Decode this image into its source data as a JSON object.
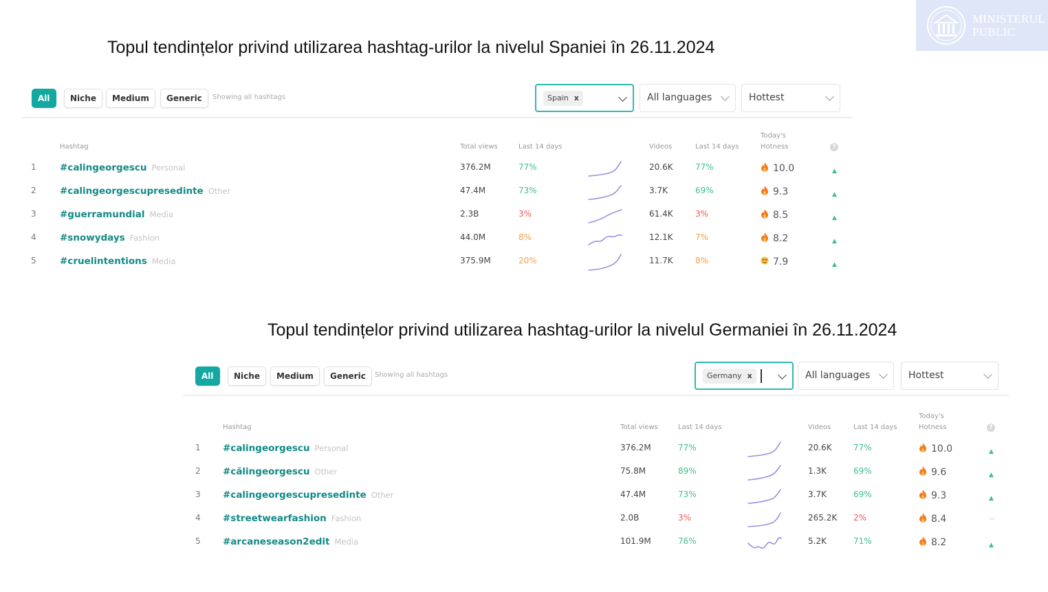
{
  "slide": {
    "title_spain": "Topul tendințelor privind utilizarea hashtag-urilor la nivelul Spaniei în 26.11.2024",
    "title_germany": "Topul tendințelor privind utilizarea hashtag-urilor la nivelul Germaniei în 26.11.2024"
  },
  "logo": {
    "line1": "MINISTERUL",
    "line2": "PUBLIC",
    "icon": "seal-icon"
  },
  "colors": {
    "accent": "#14a8a2",
    "hashtag": "#128a85",
    "up": "#3fc08a",
    "down": "#ef5a5a",
    "mid": "#f3a044",
    "sparkline": "#9b8fe0",
    "flame": "#f47a1f"
  },
  "filters": {
    "all": "All",
    "niche": "Niche",
    "medium": "Medium",
    "generic": "Generic",
    "showing": "Showing all hashtags"
  },
  "columns": {
    "hashtag": "Hashtag",
    "total_views": "Total views",
    "last_14_days": "Last 14 days",
    "videos": "Videos",
    "todays_line1": "Today's",
    "todays_line2": "Hotness",
    "help": "?"
  },
  "panels": {
    "spain": {
      "country": "Spain",
      "remove": "x",
      "language": "All languages",
      "sort": "Hottest",
      "rows": [
        {
          "rank": "1",
          "hashtag": "#calingeorgescu",
          "category": "Personal",
          "views": "376.2M",
          "views_pct": "77%",
          "videos": "20.6K",
          "videos_pct": "77%",
          "hotness": "10.0",
          "trend": "up",
          "icon": "flame-icon"
        },
        {
          "rank": "2",
          "hashtag": "#calingeorgescupresedinte",
          "category": "Other",
          "views": "47.4M",
          "views_pct": "73%",
          "videos": "3.7K",
          "videos_pct": "69%",
          "hotness": "9.3",
          "trend": "up",
          "icon": "flame-icon"
        },
        {
          "rank": "3",
          "hashtag": "#guerramundial",
          "category": "Media",
          "views": "2.3B",
          "views_pct": "3%",
          "videos": "61.4K",
          "videos_pct": "3%",
          "hotness": "8.5",
          "trend": "up",
          "icon": "flame-icon"
        },
        {
          "rank": "4",
          "hashtag": "#snowydays",
          "category": "Fashion",
          "views": "44.0M",
          "views_pct": "8%",
          "videos": "12.1K",
          "videos_pct": "7%",
          "hotness": "8.2",
          "trend": "up",
          "icon": "flame-icon"
        },
        {
          "rank": "5",
          "hashtag": "#cruelintentions",
          "category": "Media",
          "views": "375.9M",
          "views_pct": "20%",
          "videos": "11.7K",
          "videos_pct": "8%",
          "hotness": "7.9",
          "trend": "up",
          "icon": "heart-eyes-emoji-icon"
        }
      ]
    },
    "germany": {
      "country": "Germany",
      "remove": "x",
      "language": "All languages",
      "sort": "Hottest",
      "rows": [
        {
          "rank": "1",
          "hashtag": "#calingeorgescu",
          "category": "Personal",
          "views": "376.2M",
          "views_pct": "77%",
          "videos": "20.6K",
          "videos_pct": "77%",
          "hotness": "10.0",
          "trend": "up",
          "icon": "flame-icon"
        },
        {
          "rank": "2",
          "hashtag": "#călingeorgescu",
          "category": "Other",
          "views": "75.8M",
          "views_pct": "89%",
          "videos": "1.3K",
          "videos_pct": "69%",
          "hotness": "9.6",
          "trend": "up",
          "icon": "flame-icon"
        },
        {
          "rank": "3",
          "hashtag": "#calingeorgescupresedinte",
          "category": "Other",
          "views": "47.4M",
          "views_pct": "73%",
          "videos": "3.7K",
          "videos_pct": "69%",
          "hotness": "9.3",
          "trend": "up",
          "icon": "flame-icon"
        },
        {
          "rank": "4",
          "hashtag": "#streetwearfashion",
          "category": "Fashion",
          "views": "2.0B",
          "views_pct": "3%",
          "videos": "265.2K",
          "videos_pct": "2%",
          "hotness": "8.4",
          "trend": "flat",
          "icon": "flame-icon"
        },
        {
          "rank": "5",
          "hashtag": "#arcaneseason2edit",
          "category": "Media",
          "views": "101.9M",
          "views_pct": "76%",
          "videos": "5.2K",
          "videos_pct": "71%",
          "hotness": "8.2",
          "trend": "up",
          "icon": "flame-icon"
        }
      ]
    }
  }
}
